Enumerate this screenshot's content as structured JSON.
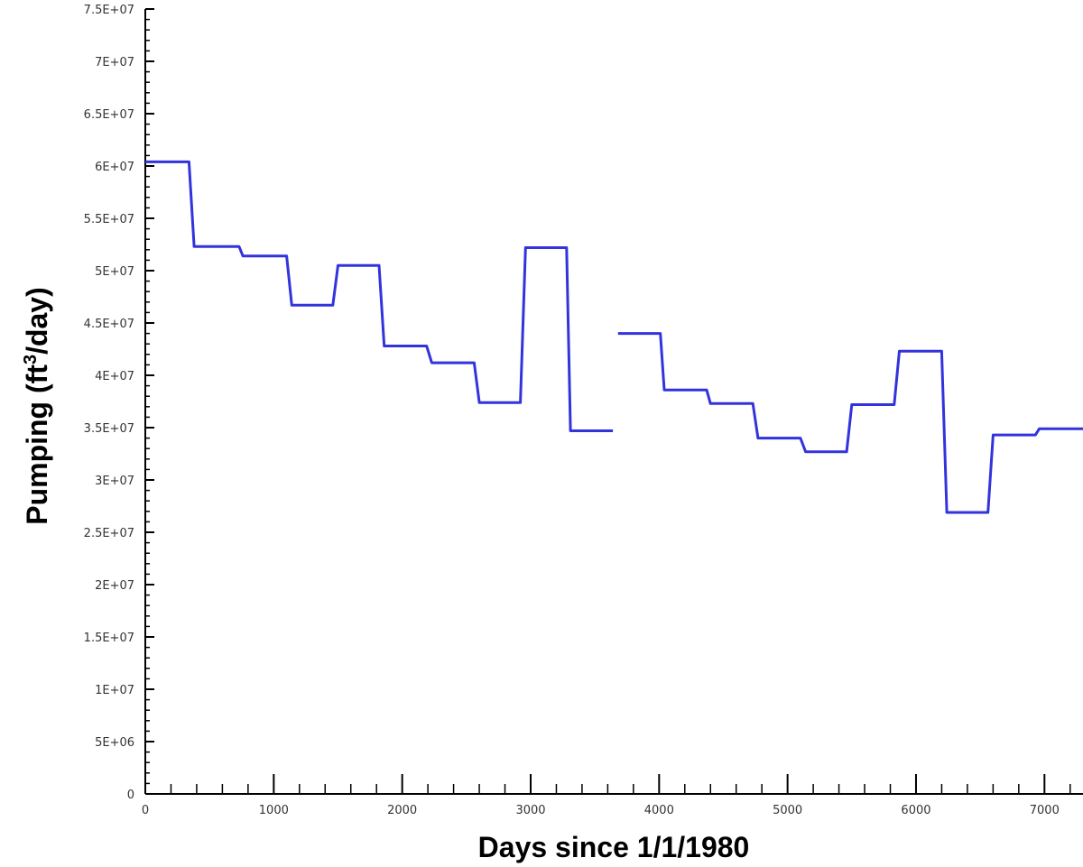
{
  "chart_data": {
    "type": "line",
    "title": "",
    "xlabel": "Days since 1/1/1980",
    "ylabel": {
      "prefix": "Pumping (ft",
      "superscript": "3",
      "suffix": "/day)"
    },
    "xlim": [
      0,
      7300
    ],
    "ylim": [
      0,
      75000000
    ],
    "x_ticks": [
      0,
      1000,
      2000,
      3000,
      4000,
      5000,
      6000,
      7000
    ],
    "x_tick_labels": [
      "0",
      "1000",
      "2000",
      "3000",
      "4000",
      "5000",
      "6000",
      "7000"
    ],
    "y_ticks": [
      0,
      5000000,
      10000000,
      15000000,
      20000000,
      25000000,
      30000000,
      35000000,
      40000000,
      45000000,
      50000000,
      55000000,
      60000000,
      65000000,
      70000000,
      75000000
    ],
    "y_tick_labels": [
      "0",
      "5E+06",
      "1E+07",
      "1.5E+07",
      "2E+07",
      "2.5E+07",
      "3E+07",
      "3.5E+07",
      "4E+07",
      "4.5E+07",
      "5E+07",
      "5.5E+07",
      "6E+07",
      "6.5E+07",
      "7E+07",
      "7.5E+07"
    ],
    "grid": false,
    "legend": "none",
    "line_color": "#3333dd",
    "series": [
      {
        "segments": [
          [
            [
              0,
              60400000
            ],
            [
              340,
              60400000
            ],
            [
              380,
              52300000
            ],
            [
              730,
              52300000
            ],
            [
              760,
              51400000
            ],
            [
              1100,
              51400000
            ],
            [
              1140,
              46700000
            ],
            [
              1460,
              46700000
            ],
            [
              1500,
              50500000
            ],
            [
              1820,
              50500000
            ],
            [
              1860,
              42800000
            ],
            [
              2190,
              42800000
            ],
            [
              2230,
              41200000
            ],
            [
              2560,
              41200000
            ],
            [
              2600,
              37400000
            ],
            [
              2920,
              37400000
            ],
            [
              2960,
              52200000
            ],
            [
              3280,
              52200000
            ],
            [
              3310,
              34700000
            ],
            [
              3640,
              34700000
            ]
          ],
          [
            [
              3680,
              44000000
            ],
            [
              4010,
              44000000
            ],
            [
              4040,
              38600000
            ],
            [
              4370,
              38600000
            ],
            [
              4400,
              37300000
            ],
            [
              4730,
              37300000
            ],
            [
              4770,
              34000000
            ],
            [
              5100,
              34000000
            ],
            [
              5140,
              32700000
            ],
            [
              5460,
              32700000
            ],
            [
              5500,
              37200000
            ],
            [
              5830,
              37200000
            ],
            [
              5870,
              42300000
            ],
            [
              6200,
              42300000
            ],
            [
              6240,
              26900000
            ],
            [
              6560,
              26900000
            ],
            [
              6600,
              34300000
            ],
            [
              6930,
              34300000
            ],
            [
              6960,
              34900000
            ],
            [
              7300,
              34900000
            ]
          ]
        ]
      }
    ]
  }
}
